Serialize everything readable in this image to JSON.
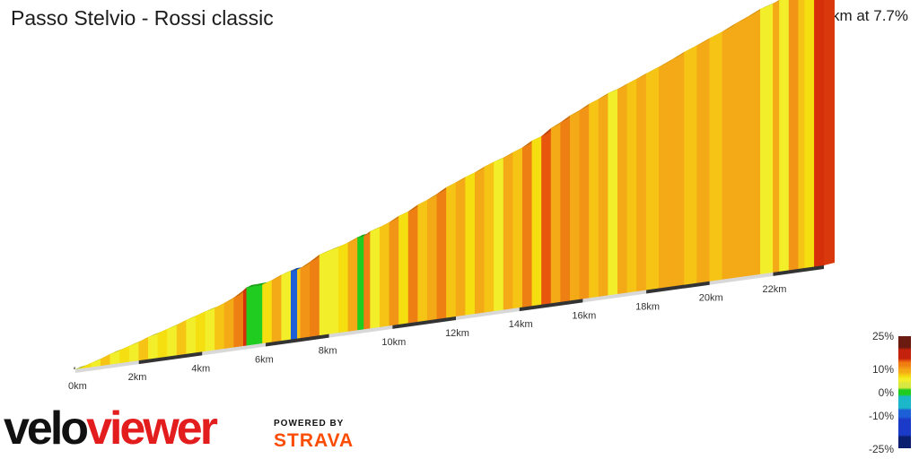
{
  "header": {
    "title": "Passo Stelvio - Rossi classic",
    "summary": "23.6 km at 7.7%"
  },
  "chart_data": {
    "type": "area",
    "subtype": "3d-elevation-profile",
    "title": "Passo Stelvio - Rossi classic",
    "distance_km": 23.6,
    "average_gradient_pct": 7.7,
    "xlabel": "",
    "ylabel": "",
    "x_ticks": [
      "0km",
      "2km",
      "4km",
      "6km",
      "8km",
      "10km",
      "12km",
      "14km",
      "16km",
      "18km",
      "20km",
      "22km"
    ],
    "x_tick_values": [
      0,
      2,
      4,
      6,
      8,
      10,
      12,
      14,
      16,
      18,
      20,
      22
    ],
    "xlim": [
      0,
      23.6
    ],
    "segments_km_gradient": [
      [
        0.2,
        3
      ],
      [
        0.5,
        7
      ],
      [
        0.8,
        6
      ],
      [
        1.1,
        8
      ],
      [
        1.4,
        5
      ],
      [
        1.7,
        7
      ],
      [
        2.0,
        6
      ],
      [
        2.3,
        8
      ],
      [
        2.6,
        5
      ],
      [
        2.9,
        7
      ],
      [
        3.2,
        6
      ],
      [
        3.5,
        8
      ],
      [
        3.8,
        6
      ],
      [
        4.1,
        7
      ],
      [
        4.4,
        5
      ],
      [
        4.7,
        8
      ],
      [
        5.0,
        9
      ],
      [
        5.3,
        13
      ],
      [
        5.4,
        17
      ],
      [
        5.6,
        0
      ],
      [
        5.9,
        1
      ],
      [
        6.2,
        7
      ],
      [
        6.5,
        9
      ],
      [
        6.8,
        6
      ],
      [
        7.0,
        -10
      ],
      [
        7.1,
        8
      ],
      [
        7.4,
        11
      ],
      [
        7.7,
        13
      ],
      [
        8.0,
        6
      ],
      [
        8.3,
        5
      ],
      [
        8.6,
        7
      ],
      [
        8.9,
        9
      ],
      [
        9.1,
        1
      ],
      [
        9.3,
        13
      ],
      [
        9.6,
        6
      ],
      [
        9.9,
        8
      ],
      [
        10.2,
        11
      ],
      [
        10.5,
        7
      ],
      [
        10.8,
        12
      ],
      [
        11.1,
        8
      ],
      [
        11.4,
        10
      ],
      [
        11.7,
        12
      ],
      [
        12.0,
        8
      ],
      [
        12.3,
        9
      ],
      [
        12.6,
        7
      ],
      [
        12.9,
        10
      ],
      [
        13.2,
        8
      ],
      [
        13.5,
        6
      ],
      [
        13.8,
        9
      ],
      [
        14.1,
        8
      ],
      [
        14.4,
        12
      ],
      [
        14.7,
        7
      ],
      [
        15.0,
        15
      ],
      [
        15.3,
        10
      ],
      [
        15.6,
        12
      ],
      [
        15.9,
        9
      ],
      [
        16.2,
        11
      ],
      [
        16.5,
        8
      ],
      [
        16.8,
        10
      ],
      [
        17.1,
        6
      ],
      [
        17.4,
        9
      ],
      [
        17.7,
        8
      ],
      [
        18.0,
        9
      ],
      [
        18.4,
        8
      ],
      [
        18.8,
        9
      ],
      [
        19.2,
        10
      ],
      [
        19.6,
        8
      ],
      [
        20.0,
        9
      ],
      [
        20.4,
        8
      ],
      [
        20.8,
        10
      ],
      [
        21.2,
        9
      ],
      [
        21.6,
        10
      ],
      [
        22.0,
        6
      ],
      [
        22.2,
        9
      ],
      [
        22.5,
        5
      ],
      [
        22.8,
        11
      ],
      [
        23.0,
        8
      ],
      [
        23.3,
        7
      ],
      [
        23.6,
        16
      ]
    ],
    "legend": {
      "title": "",
      "labels": [
        "25%",
        "10%",
        "0%",
        "-10%",
        "-25%"
      ],
      "values": [
        25,
        10,
        0,
        -10,
        -25
      ]
    }
  },
  "branding": {
    "logo_velo": "velo",
    "logo_viewer": "viewer",
    "powered_by": "POWERED BY",
    "strava": "STRAVA",
    "velo_color": "#111111",
    "viewer_color": "#e31d1d",
    "strava_color": "#fc4c02"
  }
}
